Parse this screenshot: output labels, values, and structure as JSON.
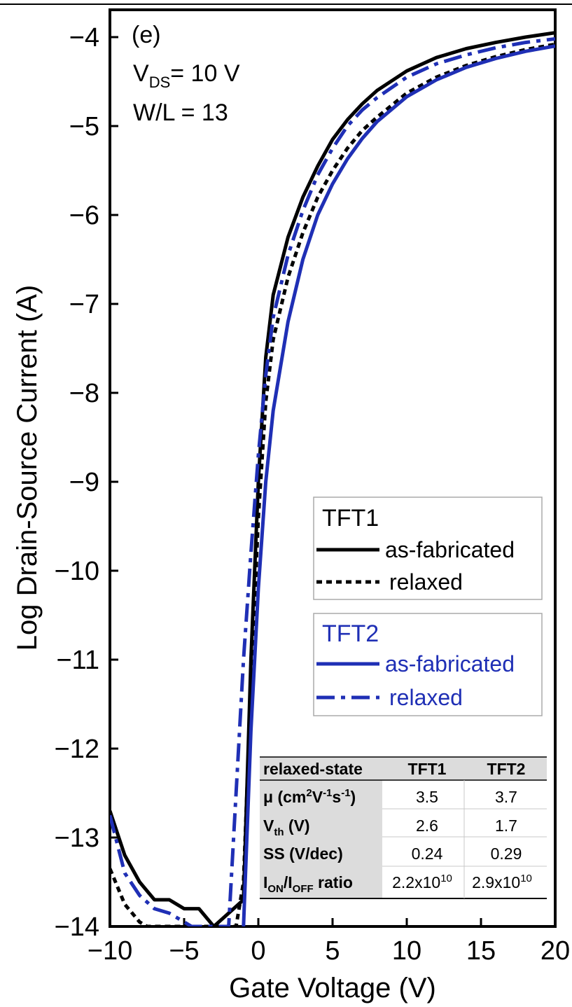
{
  "chart_data": {
    "type": "line",
    "panel_label": "(e)",
    "annotations": {
      "vds_main": "V",
      "vds_sub": "DS",
      "vds_value": "= 10 V",
      "wl": "W/L = 13"
    },
    "xlabel": "Gate Voltage (V)",
    "ylabel": "Log Drain-Source Current (A)",
    "xlim": [
      -10,
      20
    ],
    "ylim": [
      -14,
      -3.7
    ],
    "xticks": [
      -10,
      -5,
      0,
      5,
      10,
      15,
      20
    ],
    "yticks": [
      -4,
      -5,
      -6,
      -7,
      -8,
      -9,
      -10,
      -11,
      -12,
      -13,
      -14
    ],
    "grid": false,
    "series": [
      {
        "group": "TFT1",
        "name": "as-fabricated",
        "color": "#000000",
        "style": "solid",
        "x": [
          -10,
          -9,
          -8,
          -7,
          -6,
          -5,
          -4,
          -3,
          -2,
          -1,
          -0.5,
          0,
          0.5,
          1,
          2,
          3,
          4,
          5,
          6,
          7,
          8,
          10,
          12,
          14,
          16,
          18,
          20
        ],
        "y": [
          -12.7,
          -13.2,
          -13.5,
          -13.7,
          -13.7,
          -13.8,
          -13.8,
          -14.0,
          -13.85,
          -13.7,
          -11.0,
          -9.0,
          -7.6,
          -6.9,
          -6.25,
          -5.8,
          -5.45,
          -5.15,
          -4.93,
          -4.75,
          -4.6,
          -4.38,
          -4.23,
          -4.13,
          -4.06,
          -4.0,
          -3.95
        ]
      },
      {
        "group": "TFT1",
        "name": "relaxed",
        "color": "#000000",
        "style": "dotted",
        "x": [
          -10,
          -9,
          -8,
          -7.5,
          -1.5,
          -1,
          -0.5,
          0,
          0.5,
          1,
          2,
          3,
          4,
          5,
          6,
          7,
          8,
          10,
          12,
          14,
          16,
          18,
          20
        ],
        "y": [
          -13.35,
          -13.75,
          -13.95,
          -14.0,
          -14.0,
          -13.5,
          -11.3,
          -9.4,
          -8.1,
          -7.4,
          -6.7,
          -6.2,
          -5.8,
          -5.5,
          -5.25,
          -5.05,
          -4.9,
          -4.63,
          -4.45,
          -4.32,
          -4.22,
          -4.14,
          -4.08
        ]
      },
      {
        "group": "TFT2",
        "name": "as-fabricated",
        "color": "#1f2fb5",
        "style": "solid",
        "x": [
          -1,
          -0.5,
          0,
          0.5,
          1,
          2,
          3,
          4,
          5,
          6,
          7,
          8,
          10,
          12,
          14,
          16,
          18,
          20
        ],
        "y": [
          -14.0,
          -11.8,
          -10.2,
          -9.0,
          -8.2,
          -7.2,
          -6.5,
          -6.0,
          -5.65,
          -5.37,
          -5.14,
          -4.95,
          -4.67,
          -4.48,
          -4.34,
          -4.24,
          -4.16,
          -4.1
        ]
      },
      {
        "group": "TFT2",
        "name": "relaxed",
        "color": "#1f2fb5",
        "style": "dashdot",
        "x": [
          -10,
          -9,
          -8,
          -7,
          -6,
          -5,
          -4.5,
          -2,
          -1.5,
          -1,
          -0.5,
          0,
          0.5,
          1,
          2,
          3,
          4,
          5,
          6,
          7,
          8,
          10,
          12,
          14,
          16,
          18,
          20
        ],
        "y": [
          -12.75,
          -13.4,
          -13.65,
          -13.8,
          -13.85,
          -13.95,
          -14.0,
          -14.0,
          -12.5,
          -11.0,
          -9.8,
          -8.7,
          -7.8,
          -7.15,
          -6.45,
          -5.95,
          -5.55,
          -5.25,
          -5.0,
          -4.82,
          -4.68,
          -4.45,
          -4.3,
          -4.2,
          -4.12,
          -4.06,
          -4.02
        ]
      }
    ],
    "legend": {
      "placement": "right",
      "groups": [
        {
          "title": "TFT1",
          "color": "#000000",
          "entries": [
            {
              "label": "as-fabricated",
              "style": "solid"
            },
            {
              "label": "relaxed",
              "style": "dotted"
            }
          ]
        },
        {
          "title": "TFT2",
          "color": "#1f2fb5",
          "entries": [
            {
              "label": "as-fabricated",
              "style": "solid"
            },
            {
              "label": "relaxed",
              "style": "dashdot"
            }
          ]
        }
      ]
    },
    "table": {
      "header": [
        "relaxed-state",
        "TFT1",
        "TFT2"
      ],
      "rows": [
        {
          "label_parts": [
            "μ (cm",
            "2",
            "V",
            "-1",
            "s",
            "-1",
            ")"
          ],
          "values": [
            "3.5",
            "3.7"
          ]
        },
        {
          "label_parts": [
            "V",
            "th",
            " (V)"
          ],
          "values": [
            "2.6",
            "1.7"
          ]
        },
        {
          "label_parts": [
            "SS (V/dec)"
          ],
          "values": [
            "0.24",
            "0.29"
          ]
        },
        {
          "label_parts": [
            "I",
            "ON",
            "/I",
            "OFF",
            " ratio"
          ],
          "values": [
            [
              "2.2x10",
              "10"
            ],
            [
              "2.9x10",
              "10"
            ]
          ]
        }
      ]
    }
  }
}
